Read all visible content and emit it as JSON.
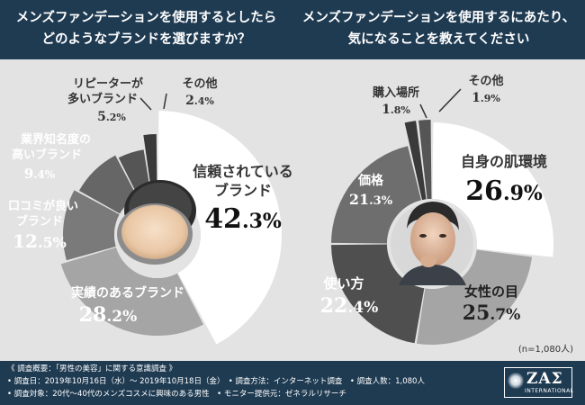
{
  "header": {
    "left_title_line1": "メンズファンデーションを使用するとしたら",
    "left_title_line2": "どのようなブランドを選びますか？",
    "right_title_line1": "メンズファンデーションを使用するにあたり、",
    "right_title_line2": "気になることを教えてください"
  },
  "sample_note": "(n=1,080人)",
  "colors": {
    "navy": "#1f3b52",
    "white_slice": "#ffffff",
    "dark_gray": "#4f4f4f",
    "medium_gray": "#7a7a7a",
    "light_gray": "#a5a5a5",
    "panel_bg": "#e3e3e3"
  },
  "chart_data": [
    {
      "type": "pie",
      "title": "どのようなブランドを選びますか？",
      "slices": [
        {
          "label": "信頼されているブランド",
          "value": 42.3
        },
        {
          "label": "実績のあるブランド",
          "value": 28.2
        },
        {
          "label": "口コミが良いブランド",
          "value": 12.5
        },
        {
          "label": "業界知名度の高いブランド",
          "value": 9.4
        },
        {
          "label": "リピーターが多いブランド",
          "value": 5.2
        },
        {
          "label": "その他",
          "value": 2.4
        }
      ]
    },
    {
      "type": "pie",
      "title": "気になること",
      "slices": [
        {
          "label": "自身の肌環境",
          "value": 26.9
        },
        {
          "label": "女性の目",
          "value": 25.7
        },
        {
          "label": "使い方",
          "value": 22.4
        },
        {
          "label": "価格",
          "value": 21.3
        },
        {
          "label": "購入場所",
          "value": 1.8
        },
        {
          "label": "その他",
          "value": 1.9
        }
      ]
    }
  ],
  "footer": {
    "line1": "《 調査概要：「男性の美容」に関する意識調査 》",
    "line2": "• 調査日：2019年10月16日（水）～ 2019年10月18日（金）　• 調査方法：インターネット調査　• 調査人数：1,080人",
    "line3": "• 調査対象：20代～40代のメンズコスメに興味のある男性　• モニター提供元：ゼネラルリサーチ",
    "logo_text": "ZAΣ",
    "logo_sub": "INTERNATIONAL"
  }
}
